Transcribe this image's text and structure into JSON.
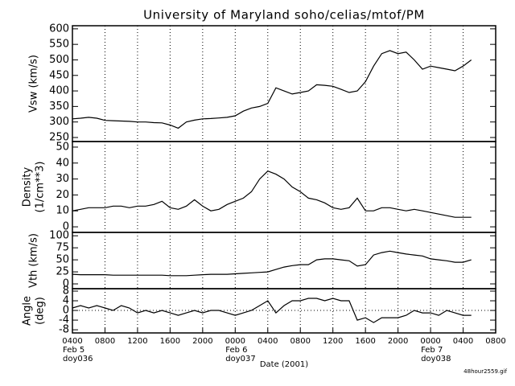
{
  "chart_data": [
    {
      "type": "line",
      "title": "University of Maryland  soho/celias/mtof/PM",
      "ylabel": [
        "Vsw (km/s)"
      ],
      "ylim": [
        237,
        610
      ],
      "yticks": [
        250,
        300,
        350,
        400,
        450,
        500,
        550,
        600
      ],
      "grid": true,
      "x": [
        0,
        1,
        2,
        3,
        4,
        5,
        6,
        7,
        8,
        9,
        10,
        11,
        12,
        13,
        14,
        15,
        16,
        17,
        18,
        19,
        20,
        21,
        22,
        23,
        24,
        25,
        26,
        27,
        28,
        29,
        30,
        31,
        32,
        33,
        34,
        35,
        36,
        37,
        38,
        39,
        40,
        41,
        42,
        43,
        44,
        45,
        46,
        47,
        48,
        49
      ],
      "series": [
        {
          "name": "Vsw",
          "color": "#000000",
          "values": [
            310,
            312,
            315,
            312,
            305,
            304,
            303,
            302,
            300,
            300,
            298,
            297,
            290,
            280,
            300,
            306,
            310,
            311,
            313,
            315,
            320,
            335,
            345,
            350,
            360,
            410,
            400,
            390,
            395,
            400,
            420,
            418,
            415,
            405,
            395,
            400,
            430,
            480,
            520,
            530,
            520,
            525,
            500,
            470,
            480,
            475,
            470,
            465,
            480,
            500
          ]
        }
      ]
    },
    {
      "type": "line",
      "ylabel": [
        "Density",
        "(1/cm**3)"
      ],
      "ylim": [
        -3.5,
        53.5
      ],
      "yticks": [
        0,
        10,
        20,
        30,
        40,
        50
      ],
      "grid": true,
      "x": [
        0,
        1,
        2,
        3,
        4,
        5,
        6,
        7,
        8,
        9,
        10,
        11,
        12,
        13,
        14,
        15,
        16,
        17,
        18,
        19,
        20,
        21,
        22,
        23,
        24,
        25,
        26,
        27,
        28,
        29,
        30,
        31,
        32,
        33,
        34,
        35,
        36,
        37,
        38,
        39,
        40,
        41,
        42,
        43,
        44,
        45,
        46,
        47,
        48,
        49
      ],
      "series": [
        {
          "name": "Density",
          "color": "#000000",
          "values": [
            10,
            11,
            12,
            12,
            12,
            13,
            13,
            12,
            13,
            13,
            14,
            16,
            12,
            11,
            13,
            17,
            13,
            10,
            11,
            14,
            16,
            18,
            22,
            30,
            35,
            33,
            30,
            25,
            22,
            18,
            17,
            15,
            12,
            11,
            12,
            18,
            10,
            10,
            12,
            12,
            11,
            10,
            11,
            10,
            9,
            8,
            7,
            6,
            6,
            6
          ]
        }
      ]
    },
    {
      "type": "line",
      "ylabel": [
        "Vth (km/s)"
      ],
      "ylim": [
        -10,
        107
      ],
      "yticks": [
        0,
        25,
        50,
        75,
        100
      ],
      "grid": true,
      "x": [
        0,
        1,
        2,
        3,
        4,
        5,
        6,
        7,
        8,
        9,
        10,
        11,
        12,
        13,
        14,
        15,
        16,
        17,
        18,
        19,
        20,
        21,
        22,
        23,
        24,
        25,
        26,
        27,
        28,
        29,
        30,
        31,
        32,
        33,
        34,
        35,
        36,
        37,
        38,
        39,
        40,
        41,
        42,
        43,
        44,
        45,
        46,
        47,
        48,
        49
      ],
      "series": [
        {
          "name": "Vth",
          "color": "#000000",
          "values": [
            20,
            19,
            19,
            19,
            19,
            18,
            18,
            18,
            18,
            18,
            18,
            18,
            17,
            17,
            17,
            18,
            19,
            20,
            20,
            20,
            21,
            22,
            23,
            24,
            25,
            30,
            35,
            38,
            40,
            40,
            50,
            52,
            52,
            50,
            48,
            37,
            40,
            60,
            65,
            68,
            65,
            62,
            60,
            58,
            52,
            50,
            48,
            45,
            45,
            50
          ]
        }
      ]
    },
    {
      "type": "line",
      "ylabel": [
        "Angle",
        "(deg)"
      ],
      "ylim": [
        -9.3,
        9.0
      ],
      "yticks": [
        -8,
        -4,
        0,
        4,
        8
      ],
      "grid": true,
      "reference_line": 0,
      "xlabel": "Date (2001)",
      "footnote": "48hour2559.gif",
      "xlim": [
        0,
        52
      ],
      "xticks": [
        {
          "value": 0,
          "label": "0400"
        },
        {
          "value": 4,
          "label": "0800"
        },
        {
          "value": 8,
          "label": "1200"
        },
        {
          "value": 12,
          "label": "1600"
        },
        {
          "value": 16,
          "label": "2000"
        },
        {
          "value": 20,
          "label": "0000"
        },
        {
          "value": 24,
          "label": "0400"
        },
        {
          "value": 28,
          "label": "0800"
        },
        {
          "value": 32,
          "label": "1200"
        },
        {
          "value": 36,
          "label": "1600"
        },
        {
          "value": 40,
          "label": "2000"
        },
        {
          "value": 44,
          "label": "0000"
        },
        {
          "value": 48,
          "label": "0400"
        },
        {
          "value": 52,
          "label": "0800"
        }
      ],
      "date_marks": [
        {
          "value": 0,
          "labels": [
            "Feb 5",
            "doy036"
          ]
        },
        {
          "value": 20,
          "labels": [
            "Feb 6",
            "doy037"
          ]
        },
        {
          "value": 44,
          "labels": [
            "Feb 7",
            "doy038"
          ]
        }
      ],
      "x": [
        0,
        1,
        2,
        3,
        4,
        5,
        6,
        7,
        8,
        9,
        10,
        11,
        12,
        13,
        14,
        15,
        16,
        17,
        18,
        19,
        20,
        21,
        22,
        23,
        24,
        25,
        26,
        27,
        28,
        29,
        30,
        31,
        32,
        33,
        34,
        35,
        36,
        37,
        38,
        39,
        40,
        41,
        42,
        43,
        44,
        45,
        46,
        47,
        48,
        49
      ],
      "series": [
        {
          "name": "Angle",
          "color": "#000000",
          "values": [
            1,
            2,
            1,
            2,
            1,
            0,
            2,
            1,
            -1,
            0,
            -1,
            0,
            -1,
            -2,
            -1,
            0,
            -1,
            0,
            0,
            -1,
            -2,
            -1,
            0,
            2,
            4,
            -1,
            2,
            4,
            4,
            5,
            5,
            4,
            5,
            4,
            4,
            -4,
            -3,
            -5,
            -3,
            -3,
            -3,
            -2,
            0,
            -1,
            -1,
            -2,
            0,
            -1,
            -2,
            -2
          ]
        }
      ]
    }
  ]
}
